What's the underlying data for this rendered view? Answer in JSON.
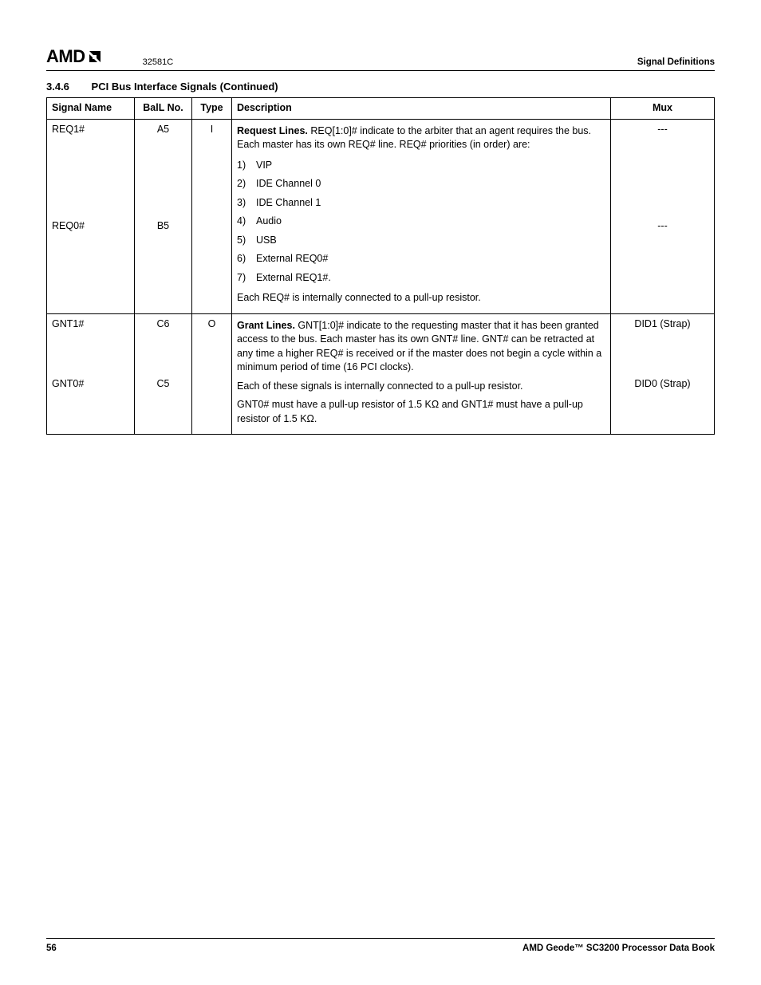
{
  "header": {
    "logo_text": "AMD",
    "doc_code": "32581C",
    "section_label": "Signal Definitions"
  },
  "section": {
    "number": "3.4.6",
    "title": "PCI Bus Interface Signals",
    "continued": "(Continued)"
  },
  "columns": {
    "signal": "Signal Name",
    "ball": "BalL No.",
    "type": "Type",
    "desc": "Description",
    "mux": "Mux"
  },
  "rows": {
    "req1": {
      "name": "REQ1#",
      "ball": "A5",
      "mux": "---"
    },
    "req0": {
      "name": "REQ0#",
      "ball": "B5",
      "mux": "---"
    },
    "gnt1": {
      "name": "GNT1#",
      "ball": "C6",
      "mux": "DID1 (Strap)"
    },
    "gnt0": {
      "name": "GNT0#",
      "ball": "C5",
      "mux": "DID0 (Strap)"
    }
  },
  "types": {
    "in": "I",
    "out": "O"
  },
  "desc_req": {
    "lead_bold": "Request Lines.",
    "lead_rest": " REQ[1:0]# indicate to the arbiter that an agent requires the bus. Each master has its own REQ# line. REQ# priorities (in order) are:",
    "items": [
      "VIP",
      "IDE Channel 0",
      "IDE Channel 1",
      "Audio",
      "USB",
      "External REQ0#",
      "External REQ1#."
    ],
    "tail": "Each REQ# is internally connected to a pull-up resistor."
  },
  "desc_gnt": {
    "lead_bold": "Grant Lines.",
    "lead_rest": " GNT[1:0]# indicate to the requesting master that it has been granted access to the bus. Each master has its own GNT# line. GNT# can be retracted at any time a higher REQ# is received or if the master does not begin a cycle within a minimum period of time (16 PCI clocks).",
    "p2": "Each of these signals is internally connected to a pull-up resistor.",
    "p3": "GNT0# must have a pull-up resistor of 1.5 KΩ and GNT1# must have a pull-up resistor of 1.5 KΩ."
  },
  "footer": {
    "page": "56",
    "book": "AMD Geode™ SC3200 Processor Data Book"
  }
}
